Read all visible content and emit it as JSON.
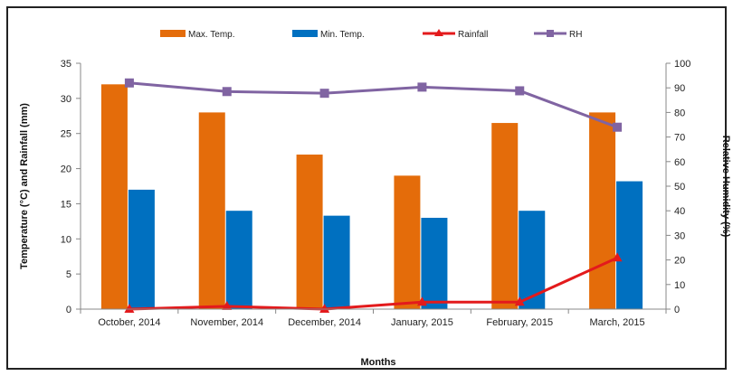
{
  "chart_data": {
    "type": "bar",
    "categories": [
      "October, 2014",
      "November, 2014",
      "December, 2014",
      "January, 2015",
      "February, 2015",
      "March, 2015"
    ],
    "series": [
      {
        "name": "Max. Temp.",
        "kind": "bar",
        "axis": "left",
        "color": "#E46C0A",
        "values": [
          32,
          28,
          22,
          19,
          26.5,
          28
        ]
      },
      {
        "name": "Min. Temp.",
        "kind": "bar",
        "axis": "left",
        "color": "#0070C0",
        "values": [
          17,
          14,
          13.3,
          13,
          14,
          18.2
        ]
      },
      {
        "name": "Rainfall",
        "kind": "line",
        "marker": "triangle",
        "axis": "left",
        "color": "#E31A1C",
        "values": [
          0,
          0.4,
          0,
          1,
          1,
          7.3
        ]
      },
      {
        "name": "RH",
        "kind": "line",
        "marker": "square",
        "axis": "right",
        "color": "#8064A2",
        "values": [
          92,
          88.5,
          87.8,
          90.3,
          88.8,
          74
        ]
      }
    ],
    "xlabel": "Months",
    "ylabel": "Temperature (°C) and Rainfall (mm)",
    "y2label": "Relative Humidity (%)",
    "ylim": [
      0,
      35
    ],
    "y2lim": [
      0,
      100
    ],
    "yticks": [
      0,
      5,
      10,
      15,
      20,
      25,
      30,
      35
    ],
    "y2ticks": [
      0,
      10,
      20,
      30,
      40,
      50,
      60,
      70,
      80,
      90,
      100
    ],
    "legend_position": "top",
    "grid": false
  }
}
